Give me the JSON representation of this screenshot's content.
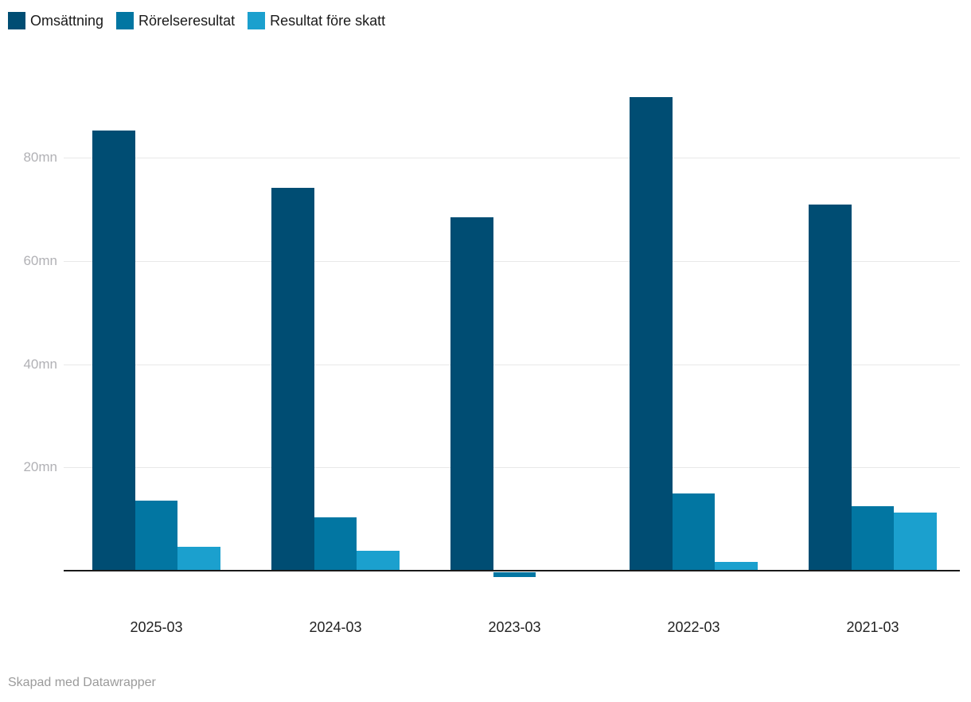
{
  "chart_data": {
    "type": "bar",
    "title": "",
    "unit": "mn",
    "categories": [
      "2025-03",
      "2024-03",
      "2023-03",
      "2022-03",
      "2021-03"
    ],
    "series": [
      {
        "name": "Omsättning",
        "color": "#004d73",
        "values": [
          85.2,
          74.2,
          68.4,
          91.7,
          70.9
        ]
      },
      {
        "name": "Rörelseresultat",
        "color": "#0276a2",
        "values": [
          13.6,
          10.4,
          -1.0,
          14.9,
          12.5
        ]
      },
      {
        "name": "Resultat före skatt",
        "color": "#1ba0ce",
        "values": [
          4.6,
          3.9,
          0,
          1.7,
          11.3
        ]
      }
    ],
    "y_ticks": [
      20,
      40,
      60,
      80
    ],
    "y_tick_labels": [
      "20mn",
      "40mn",
      "60mn",
      "80mn"
    ],
    "ylim": [
      -2,
      95
    ],
    "grid": true,
    "legend_position": "top"
  },
  "footer": {
    "credit": "Skapad med Datawrapper"
  },
  "colors": {
    "background": "#ffffff",
    "grid": "#e8e8e8",
    "axis": "#1a1a1a",
    "tick_label": "#b1b1b5",
    "category_label": "#222222",
    "legend_label": "#1a1a1a",
    "credit": "#9b9b9b"
  }
}
